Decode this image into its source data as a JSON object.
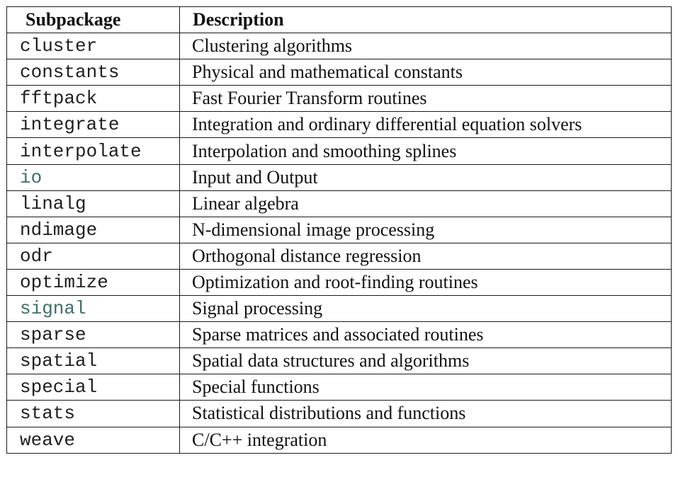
{
  "header": {
    "col1": "Subpackage",
    "col2": "Description"
  },
  "rows": [
    {
      "name": "cluster",
      "desc": "Clustering algorithms",
      "color": "#1f1f1f"
    },
    {
      "name": "constants",
      "desc": "Physical and mathematical constants",
      "color": "#1f1f1f"
    },
    {
      "name": "fftpack",
      "desc": "Fast Fourier Transform routines",
      "color": "#1f1f1f"
    },
    {
      "name": "integrate",
      "desc": "Integration and ordinary differential equation solvers",
      "color": "#1f1f1f"
    },
    {
      "name": "interpolate",
      "desc": "Interpolation and smoothing splines",
      "color": "#1f1f1f"
    },
    {
      "name": "io",
      "desc": "Input and Output",
      "color": "#3f6f6a"
    },
    {
      "name": "linalg",
      "desc": "Linear algebra",
      "color": "#1f1f1f"
    },
    {
      "name": "ndimage",
      "desc": "N-dimensional image processing",
      "color": "#1f1f1f"
    },
    {
      "name": "odr",
      "desc": "Orthogonal distance regression",
      "color": "#1f1f1f"
    },
    {
      "name": "optimize",
      "desc": "Optimization and root-finding routines",
      "color": "#1f1f1f"
    },
    {
      "name": "signal",
      "desc": "Signal processing",
      "color": "#3f6f6a"
    },
    {
      "name": "sparse",
      "desc": "Sparse matrices and associated routines",
      "color": "#1f1f1f"
    },
    {
      "name": "spatial",
      "desc": "Spatial data structures and algorithms",
      "color": "#1f1f1f"
    },
    {
      "name": "special",
      "desc": "Special functions",
      "color": "#1f1f1f"
    },
    {
      "name": "stats",
      "desc": "Statistical distributions and functions",
      "color": "#1f1f1f"
    },
    {
      "name": "weave",
      "desc": "C/C++ integration",
      "color": "#1f1f1f"
    }
  ]
}
